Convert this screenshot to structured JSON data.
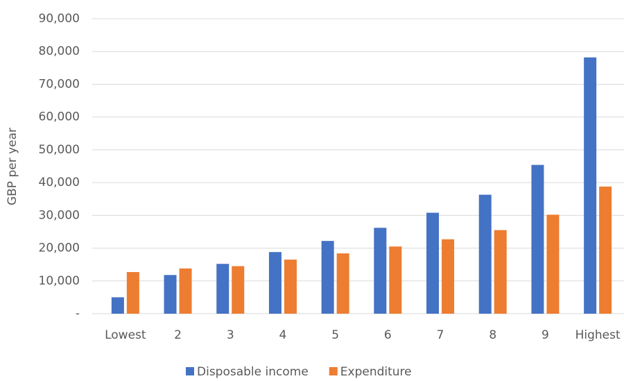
{
  "chart_data": {
    "type": "bar",
    "y_label": "GBP per year",
    "categories": [
      "Lowest",
      "2",
      "3",
      "4",
      "5",
      "6",
      "7",
      "8",
      "9",
      "Highest"
    ],
    "series": [
      {
        "name": "Disposable income",
        "color": "#4472c4",
        "values": [
          5000,
          11800,
          15200,
          18800,
          22200,
          26200,
          30800,
          36300,
          45400,
          78200
        ]
      },
      {
        "name": "Expenditure",
        "color": "#ed7d31",
        "values": [
          12700,
          13800,
          14500,
          16500,
          18400,
          20500,
          22700,
          25500,
          30200,
          38800
        ]
      }
    ],
    "ylim": [
      0,
      90000
    ],
    "yticks": [
      {
        "value": 0,
        "label": "-"
      },
      {
        "value": 10000,
        "label": "10,000"
      },
      {
        "value": 20000,
        "label": "20,000"
      },
      {
        "value": 30000,
        "label": "30,000"
      },
      {
        "value": 40000,
        "label": "40,000"
      },
      {
        "value": 50000,
        "label": "50,000"
      },
      {
        "value": 60000,
        "label": "60,000"
      },
      {
        "value": 70000,
        "label": "70,000"
      },
      {
        "value": 80000,
        "label": "80,000"
      },
      {
        "value": 90000,
        "label": "90,000"
      }
    ],
    "grid": true,
    "legend": "bottom"
  }
}
